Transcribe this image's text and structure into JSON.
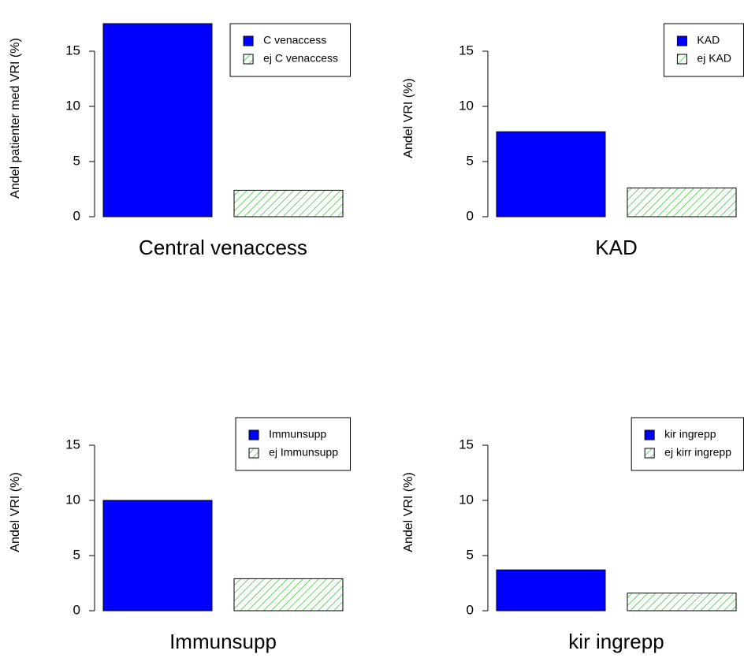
{
  "chart_data": [
    {
      "type": "bar",
      "xlabel": "Central venaccess",
      "ylabel": "Andel patienter med VRI (%)",
      "ylim": [
        0,
        17.5
      ],
      "yticks": [
        0,
        5,
        10,
        15
      ],
      "legend": "top-right",
      "series": [
        {
          "name": "C venaccess",
          "color": "#0000ff",
          "hatch": false,
          "values": [
            17.5
          ]
        },
        {
          "name": "ej C venaccess",
          "color": "#33cc33",
          "hatch": true,
          "values": [
            2.4
          ]
        }
      ]
    },
    {
      "type": "bar",
      "xlabel": "KAD",
      "ylabel": "Andel VRI (%)",
      "ylim": [
        0,
        17.5
      ],
      "yticks": [
        0,
        5,
        10,
        15
      ],
      "legend": "top-right",
      "series": [
        {
          "name": "KAD",
          "color": "#0000ff",
          "hatch": false,
          "values": [
            7.7
          ]
        },
        {
          "name": "ej KAD",
          "color": "#33cc33",
          "hatch": true,
          "values": [
            2.6
          ]
        }
      ]
    },
    {
      "type": "bar",
      "xlabel": "Immunsupp",
      "ylabel": "Andel VRI (%)",
      "ylim": [
        0,
        17.5
      ],
      "yticks": [
        0,
        5,
        10,
        15
      ],
      "legend": "top-right",
      "series": [
        {
          "name": "Immunsupp",
          "color": "#0000ff",
          "hatch": false,
          "values": [
            10.0
          ]
        },
        {
          "name": "ej Immunsupp",
          "color": "#33cc33",
          "hatch": true,
          "values": [
            2.9
          ]
        }
      ]
    },
    {
      "type": "bar",
      "xlabel": "kir ingrepp",
      "ylabel": "Andel VRI (%)",
      "ylim": [
        0,
        17.5
      ],
      "yticks": [
        0,
        5,
        10,
        15
      ],
      "legend": "top-right",
      "series": [
        {
          "name": "kir ingrepp",
          "color": "#0000ff",
          "hatch": false,
          "values": [
            3.7
          ]
        },
        {
          "name": "ej kirr ingrepp",
          "color": "#33cc33",
          "hatch": true,
          "values": [
            1.6
          ]
        }
      ]
    }
  ]
}
